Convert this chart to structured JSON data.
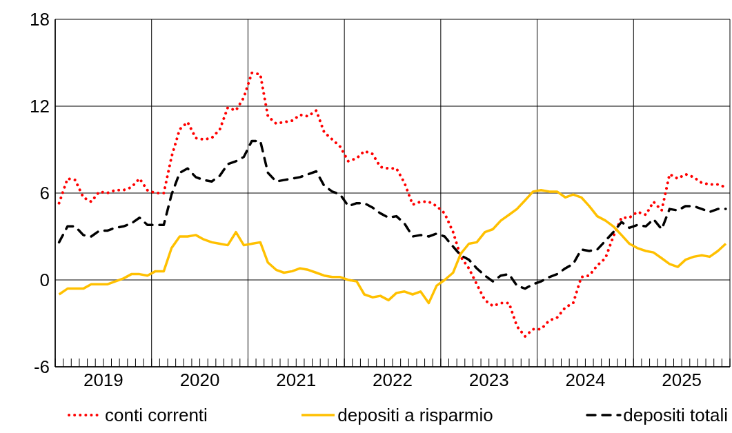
{
  "chart_data": {
    "type": "line",
    "x": [
      "2019-01-16",
      "2019-02-16",
      "2019-03-16",
      "2019-04-16",
      "2019-05-16",
      "2019-06-16",
      "2019-07-16",
      "2019-08-16",
      "2019-09-16",
      "2019-10-16",
      "2019-11-16",
      "2019-12-16",
      "2020-01-16",
      "2020-02-16",
      "2020-03-16",
      "2020-04-16",
      "2020-05-16",
      "2020-06-16",
      "2020-07-16",
      "2020-08-16",
      "2020-09-16",
      "2020-10-16",
      "2020-11-16",
      "2020-12-16",
      "2021-01-16",
      "2021-02-16",
      "2021-03-16",
      "2021-04-16",
      "2021-05-16",
      "2021-06-16",
      "2021-07-16",
      "2021-08-16",
      "2021-09-16",
      "2021-10-16",
      "2021-11-16",
      "2021-12-16",
      "2022-01-16",
      "2022-02-16",
      "2022-03-16",
      "2022-04-16",
      "2022-05-16",
      "2022-06-16",
      "2022-07-16",
      "2022-08-16",
      "2022-09-16",
      "2022-10-16",
      "2022-11-16",
      "2022-12-16",
      "2023-01-16",
      "2023-02-16",
      "2023-03-16",
      "2023-04-16",
      "2023-05-16",
      "2023-06-16",
      "2023-07-16",
      "2023-08-16",
      "2023-09-16",
      "2023-10-16",
      "2023-11-16",
      "2023-12-16",
      "2024-01-16",
      "2024-02-16",
      "2024-03-16",
      "2024-04-16",
      "2024-05-16",
      "2024-06-16",
      "2024-07-16",
      "2024-08-16",
      "2024-09-16",
      "2024-10-16",
      "2024-11-16",
      "2024-12-16",
      "2025-01-16",
      "2025-02-16",
      "2025-03-16",
      "2025-04-16",
      "2025-05-16",
      "2025-06-16",
      "2025-07-16",
      "2025-08-16",
      "2025-09-16",
      "2025-10-16",
      "2025-11-16",
      "2025-12-16"
    ],
    "series": [
      {
        "name": "conti correnti",
        "color": "#ff0000",
        "line_style": "dotted",
        "values": [
          5.3,
          7.0,
          6.9,
          5.7,
          5.4,
          6.1,
          6.0,
          6.2,
          6.2,
          6.4,
          7.0,
          6.2,
          6.0,
          6.0,
          8.5,
          10.4,
          10.9,
          9.8,
          9.7,
          9.8,
          10.4,
          11.9,
          11.7,
          12.6,
          14.3,
          14.2,
          11.3,
          10.8,
          10.9,
          11.0,
          11.4,
          11.3,
          11.7,
          10.2,
          9.7,
          9.2,
          8.2,
          8.4,
          8.9,
          8.7,
          7.8,
          7.7,
          7.7,
          6.7,
          5.2,
          5.4,
          5.4,
          5.1,
          4.6,
          3.3,
          1.6,
          0.8,
          -0.3,
          -1.4,
          -1.8,
          -1.6,
          -1.6,
          -3.2,
          -3.9,
          -3.4,
          -3.4,
          -2.8,
          -2.6,
          -1.9,
          -1.6,
          0.2,
          0.3,
          1.0,
          1.5,
          3.0,
          4.3,
          4.3,
          4.7,
          4.5,
          5.4,
          4.8,
          7.3,
          7.0,
          7.3,
          7.1,
          6.7,
          6.6,
          6.6,
          6.4
        ]
      },
      {
        "name": "depositi a risparmio",
        "color": "#ffc000",
        "line_style": "solid",
        "values": [
          -1.0,
          -0.6,
          -0.6,
          -0.6,
          -0.3,
          -0.3,
          -0.3,
          -0.1,
          0.1,
          0.4,
          0.4,
          0.3,
          0.6,
          0.6,
          2.2,
          3.0,
          3.0,
          3.1,
          2.8,
          2.6,
          2.5,
          2.4,
          3.3,
          2.4,
          2.5,
          2.6,
          1.2,
          0.7,
          0.5,
          0.6,
          0.8,
          0.7,
          0.5,
          0.3,
          0.2,
          0.2,
          0.0,
          -0.1,
          -1.0,
          -1.2,
          -1.1,
          -1.4,
          -0.9,
          -0.8,
          -1.0,
          -0.8,
          -1.6,
          -0.4,
          0.0,
          0.5,
          1.8,
          2.5,
          2.6,
          3.3,
          3.5,
          4.1,
          4.5,
          4.9,
          5.5,
          6.1,
          6.2,
          6.1,
          6.1,
          5.7,
          5.9,
          5.7,
          5.1,
          4.4,
          4.1,
          3.7,
          3.1,
          2.5,
          2.2,
          2.0,
          1.9,
          1.5,
          1.1,
          0.9,
          1.4,
          1.6,
          1.7,
          1.6,
          2.0,
          2.5
        ]
      },
      {
        "name": "depositi totali",
        "color": "#000000",
        "line_style": "dashed",
        "values": [
          2.6,
          3.7,
          3.7,
          3.1,
          3.0,
          3.4,
          3.4,
          3.6,
          3.7,
          3.9,
          4.3,
          3.8,
          3.8,
          3.8,
          5.9,
          7.4,
          7.7,
          7.1,
          6.9,
          6.8,
          7.2,
          8.0,
          8.2,
          8.5,
          9.6,
          9.6,
          7.4,
          6.8,
          6.9,
          7.0,
          7.1,
          7.3,
          7.5,
          6.5,
          6.1,
          5.9,
          5.1,
          5.3,
          5.3,
          5.0,
          4.6,
          4.3,
          4.4,
          3.9,
          3.0,
          3.1,
          3.0,
          3.2,
          3.0,
          2.3,
          1.7,
          1.4,
          0.8,
          0.3,
          -0.1,
          0.3,
          0.4,
          -0.4,
          -0.6,
          -0.3,
          -0.1,
          0.2,
          0.4,
          0.8,
          1.1,
          2.1,
          2.0,
          2.1,
          2.7,
          3.3,
          4.0,
          3.6,
          3.8,
          3.7,
          4.2,
          3.5,
          4.9,
          4.8,
          5.1,
          5.1,
          4.9,
          4.7,
          4.9,
          4.9
        ]
      }
    ],
    "xlim": [
      "2019-01-01",
      "2026-01-01"
    ],
    "xticks": [
      {
        "value": "2019-01-01",
        "label": null
      },
      {
        "value": "2019-07-01",
        "label": "2019"
      },
      {
        "value": "2020-01-01",
        "label": null
      },
      {
        "value": "2020-07-01",
        "label": "2020"
      },
      {
        "value": "2021-01-01",
        "label": null
      },
      {
        "value": "2021-07-01",
        "label": "2021"
      },
      {
        "value": "2022-01-01",
        "label": null
      },
      {
        "value": "2022-07-01",
        "label": "2022"
      },
      {
        "value": "2023-01-01",
        "label": null
      },
      {
        "value": "2023-07-01",
        "label": "2023"
      },
      {
        "value": "2024-01-01",
        "label": null
      },
      {
        "value": "2024-07-01",
        "label": "2024"
      },
      {
        "value": "2025-01-01",
        "label": null
      },
      {
        "value": "2025-07-01",
        "label": "2025"
      },
      {
        "value": "2026-01-01",
        "label": null
      }
    ],
    "ylim": [
      -6,
      18
    ],
    "yticks": [
      -6,
      0,
      6,
      12,
      18
    ],
    "grid": true,
    "legend": "bottom"
  }
}
